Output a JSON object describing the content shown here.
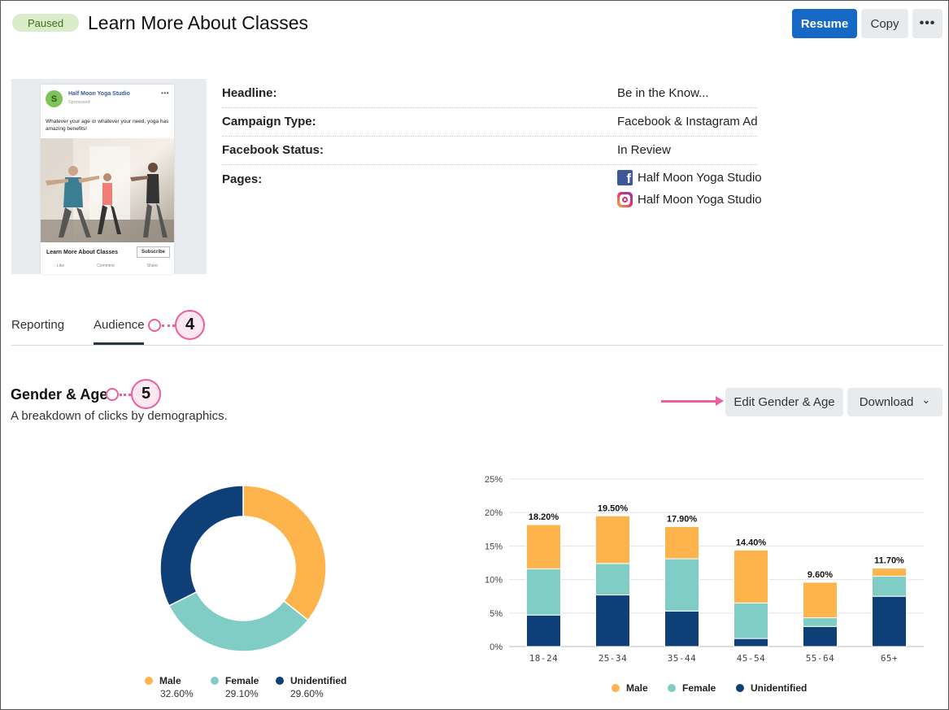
{
  "header": {
    "status_badge": "Paused",
    "title": "Learn More About Classes",
    "resume_label": "Resume",
    "copy_label": "Copy",
    "more_label": "•••"
  },
  "ad_preview": {
    "avatar_letter": "S",
    "studio_name": "Half Moon Yoga Studio",
    "sponsored": "Sponsored",
    "menu": "•••",
    "body_text": "Whatever your age or whatever your need, yoga has amazing benefits!",
    "cta_title": "Learn More About Classes",
    "cta_button": "Subscribe",
    "actions": [
      "Like",
      "Comment",
      "Share"
    ]
  },
  "details": {
    "headline_label": "Headline:",
    "headline_value": "Be in the Know...",
    "campaign_type_label": "Campaign Type:",
    "campaign_type_value": "Facebook & Instagram Ad",
    "facebook_status_label": "Facebook Status:",
    "facebook_status_value": "In Review",
    "pages_label": "Pages:",
    "pages": [
      {
        "network": "facebook",
        "name": "Half Moon Yoga Studio"
      },
      {
        "network": "instagram",
        "name": "Half Moon Yoga Studio"
      }
    ]
  },
  "tabs": [
    {
      "label": "Reporting",
      "active": false
    },
    {
      "label": "Audience",
      "active": true
    }
  ],
  "callouts": [
    "4",
    "5"
  ],
  "section": {
    "title": "Gender & Age",
    "subtitle": "A breakdown of clicks by demographics.",
    "edit_label": "Edit Gender & Age",
    "download_label": "Download",
    "download_caret": "⌄"
  },
  "colors": {
    "male": "#fdb44d",
    "female": "#7fcdc4",
    "unidentified": "#0e3f77",
    "primary": "#1668c5",
    "callout": "#ec5f9e"
  },
  "chart_data": [
    {
      "type": "pie",
      "variant": "donut",
      "labels": [
        "Male",
        "Female",
        "Unidentified"
      ],
      "values": [
        32.6,
        29.1,
        29.6
      ],
      "display_values": [
        "32.60%",
        "29.10%",
        "29.60%"
      ]
    },
    {
      "type": "bar",
      "stacked": true,
      "categories": [
        "18-24",
        "25-34",
        "35-44",
        "45-54",
        "55-64",
        "65+"
      ],
      "series": [
        {
          "name": "Unidentified",
          "values": [
            4.7,
            7.7,
            5.3,
            1.2,
            3.0,
            7.5
          ]
        },
        {
          "name": "Female",
          "values": [
            6.9,
            4.7,
            7.8,
            5.3,
            1.3,
            3.0
          ]
        },
        {
          "name": "Male",
          "values": [
            6.6,
            7.1,
            4.8,
            7.9,
            5.3,
            1.2
          ]
        }
      ],
      "totals": [
        "18.20%",
        "19.50%",
        "17.90%",
        "14.40%",
        "9.60%",
        "11.70%"
      ],
      "y_ticks": [
        "0%",
        "5%",
        "10%",
        "15%",
        "20%",
        "25%"
      ],
      "ylim": [
        0,
        25
      ],
      "grid": true,
      "legend_position": "bottom"
    }
  ]
}
